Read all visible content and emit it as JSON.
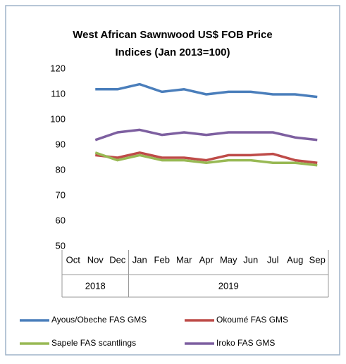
{
  "chart_data": {
    "type": "line",
    "title": [
      "West African Sawnwood US$ FOB Price",
      "Indices (Jan 2013=100)"
    ],
    "categories": [
      "Oct",
      "Nov",
      "Dec",
      "Jan",
      "Feb",
      "Mar",
      "Apr",
      "May",
      "Jun",
      "Jul",
      "Aug",
      "Sep"
    ],
    "groups": [
      {
        "label": "2018",
        "count": 3
      },
      {
        "label": "2019",
        "count": 9
      }
    ],
    "series": [
      {
        "name": "Ayous/Obeche  FAS GMS",
        "color": "#4a7ebb",
        "values": [
          null,
          112,
          112,
          114,
          111,
          112,
          110,
          111,
          111,
          110,
          110,
          109
        ]
      },
      {
        "name": "Okoumé  FAS GMS",
        "color": "#be4b48",
        "values": [
          null,
          86,
          85,
          87,
          85,
          85,
          84,
          86,
          86,
          86.5,
          84,
          83
        ]
      },
      {
        "name": "Sapele FAS scantlings",
        "color": "#98b954",
        "values": [
          null,
          87,
          84,
          86,
          84,
          84,
          83,
          84,
          84,
          83,
          83,
          82
        ]
      },
      {
        "name": "Iroko FAS GMS",
        "color": "#7d5fa0",
        "values": [
          null,
          92,
          95,
          96,
          94,
          95,
          94,
          95,
          95,
          95,
          93,
          92
        ]
      }
    ],
    "ylim": [
      50,
      120
    ],
    "yticks": [
      50,
      60,
      70,
      80,
      90,
      100,
      110,
      120
    ],
    "grid": false
  }
}
